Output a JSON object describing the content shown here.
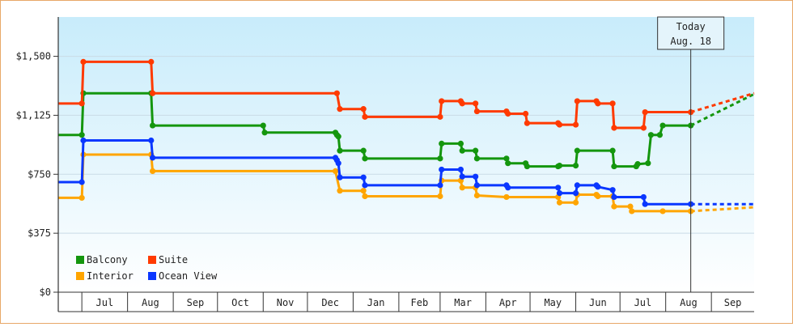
{
  "chart_data": {
    "type": "line",
    "title": "",
    "xlabel": "",
    "ylabel": "",
    "x_domain": [
      "2025-06-15",
      "2026-09-30"
    ],
    "ylim": [
      0,
      1750
    ],
    "y_ticks": [
      {
        "value": 0,
        "label": "$0"
      },
      {
        "value": 375,
        "label": "$375"
      },
      {
        "value": 750,
        "label": "$750"
      },
      {
        "value": 1125,
        "label": "$1,125"
      },
      {
        "value": 1500,
        "label": "$1,500"
      }
    ],
    "x_ticks": [
      {
        "start": "2025-07-01",
        "end": "2025-08-01",
        "label": "Jul"
      },
      {
        "start": "2025-08-01",
        "end": "2025-09-01",
        "label": "Aug"
      },
      {
        "start": "2025-09-01",
        "end": "2025-10-01",
        "label": "Sep"
      },
      {
        "start": "2025-10-01",
        "end": "2025-11-01",
        "label": "Oct"
      },
      {
        "start": "2025-11-01",
        "end": "2025-12-01",
        "label": "Nov"
      },
      {
        "start": "2025-12-01",
        "end": "2026-01-01",
        "label": "Dec"
      },
      {
        "start": "2026-01-01",
        "end": "2026-02-01",
        "label": "Jan"
      },
      {
        "start": "2026-02-01",
        "end": "2026-03-01",
        "label": "Feb"
      },
      {
        "start": "2026-03-01",
        "end": "2026-04-01",
        "label": "Mar"
      },
      {
        "start": "2026-04-01",
        "end": "2026-05-01",
        "label": "Apr"
      },
      {
        "start": "2026-05-01",
        "end": "2026-06-01",
        "label": "May"
      },
      {
        "start": "2026-06-01",
        "end": "2026-07-01",
        "label": "Jun"
      },
      {
        "start": "2026-07-01",
        "end": "2026-08-01",
        "label": "Jul"
      },
      {
        "start": "2026-08-01",
        "end": "2026-09-01",
        "label": "Aug"
      },
      {
        "start": "2026-09-01",
        "end": "2026-10-01",
        "label": "Sep"
      }
    ],
    "today": {
      "date": "2026-08-18",
      "label_line1": "Today",
      "label_line2": "Aug. 18"
    },
    "grid": true,
    "step": true,
    "legend": {
      "position": "bottom-left"
    },
    "series": [
      {
        "name": "Balcony",
        "color": "#14960e",
        "points": [
          [
            "2025-06-15",
            1000
          ],
          [
            "2025-07-01",
            1000
          ],
          [
            "2025-07-02",
            1265
          ],
          [
            "2025-08-17",
            1265
          ],
          [
            "2025-08-18",
            1060
          ],
          [
            "2025-11-01",
            1060
          ],
          [
            "2025-11-02",
            1015
          ],
          [
            "2025-12-20",
            1015
          ],
          [
            "2025-12-21",
            1000
          ],
          [
            "2025-12-22",
            990
          ],
          [
            "2025-12-23",
            900
          ],
          [
            "2026-01-08",
            900
          ],
          [
            "2026-01-09",
            850
          ],
          [
            "2026-03-01",
            850
          ],
          [
            "2026-03-02",
            945
          ],
          [
            "2026-03-15",
            945
          ],
          [
            "2026-03-16",
            900
          ],
          [
            "2026-03-25",
            900
          ],
          [
            "2026-03-26",
            850
          ],
          [
            "2026-04-15",
            850
          ],
          [
            "2026-04-16",
            820
          ],
          [
            "2026-04-28",
            820
          ],
          [
            "2026-04-29",
            800
          ],
          [
            "2026-05-20",
            800
          ],
          [
            "2026-05-21",
            805
          ],
          [
            "2026-06-01",
            805
          ],
          [
            "2026-06-02",
            900
          ],
          [
            "2026-06-26",
            900
          ],
          [
            "2026-06-27",
            800
          ],
          [
            "2026-07-12",
            800
          ],
          [
            "2026-07-13",
            815
          ],
          [
            "2026-07-20",
            820
          ],
          [
            "2026-07-22",
            1000
          ],
          [
            "2026-07-28",
            1000
          ],
          [
            "2026-07-30",
            1060
          ],
          [
            "2026-08-18",
            1060
          ]
        ],
        "forecast": [
          [
            "2026-08-18",
            1060
          ],
          [
            "2026-09-30",
            1260
          ]
        ]
      },
      {
        "name": "Suite",
        "color": "#ff3a00",
        "points": [
          [
            "2025-06-15",
            1200
          ],
          [
            "2025-07-01",
            1200
          ],
          [
            "2025-07-02",
            1465
          ],
          [
            "2025-08-17",
            1465
          ],
          [
            "2025-08-18",
            1265
          ],
          [
            "2025-12-21",
            1265
          ],
          [
            "2025-12-23",
            1165
          ],
          [
            "2026-01-08",
            1165
          ],
          [
            "2026-01-09",
            1115
          ],
          [
            "2026-03-01",
            1115
          ],
          [
            "2026-03-02",
            1215
          ],
          [
            "2026-03-15",
            1215
          ],
          [
            "2026-03-16",
            1200
          ],
          [
            "2026-03-25",
            1200
          ],
          [
            "2026-03-26",
            1150
          ],
          [
            "2026-04-15",
            1150
          ],
          [
            "2026-04-16",
            1135
          ],
          [
            "2026-04-28",
            1135
          ],
          [
            "2026-04-29",
            1075
          ],
          [
            "2026-05-20",
            1075
          ],
          [
            "2026-05-21",
            1065
          ],
          [
            "2026-06-01",
            1065
          ],
          [
            "2026-06-02",
            1215
          ],
          [
            "2026-06-15",
            1215
          ],
          [
            "2026-06-16",
            1200
          ],
          [
            "2026-06-26",
            1200
          ],
          [
            "2026-06-27",
            1045
          ],
          [
            "2026-07-17",
            1045
          ],
          [
            "2026-07-18",
            1145
          ],
          [
            "2026-08-18",
            1145
          ]
        ],
        "forecast": [
          [
            "2026-08-18",
            1145
          ],
          [
            "2026-09-30",
            1265
          ]
        ]
      },
      {
        "name": "Interior",
        "color": "#ffa500",
        "points": [
          [
            "2025-06-15",
            600
          ],
          [
            "2025-07-01",
            600
          ],
          [
            "2025-07-02",
            875
          ],
          [
            "2025-08-17",
            875
          ],
          [
            "2025-08-18",
            770
          ],
          [
            "2025-12-20",
            770
          ],
          [
            "2025-12-23",
            645
          ],
          [
            "2026-01-08",
            645
          ],
          [
            "2026-01-09",
            610
          ],
          [
            "2026-03-01",
            610
          ],
          [
            "2026-03-02",
            710
          ],
          [
            "2026-03-15",
            710
          ],
          [
            "2026-03-16",
            665
          ],
          [
            "2026-03-25",
            665
          ],
          [
            "2026-03-26",
            615
          ],
          [
            "2026-04-15",
            605
          ],
          [
            "2026-05-20",
            605
          ],
          [
            "2026-05-21",
            570
          ],
          [
            "2026-06-01",
            570
          ],
          [
            "2026-06-02",
            620
          ],
          [
            "2026-06-15",
            620
          ],
          [
            "2026-06-16",
            610
          ],
          [
            "2026-06-26",
            610
          ],
          [
            "2026-06-27",
            545
          ],
          [
            "2026-07-08",
            545
          ],
          [
            "2026-07-09",
            515
          ],
          [
            "2026-07-30",
            515
          ],
          [
            "2026-08-18",
            515
          ]
        ],
        "forecast": [
          [
            "2026-08-18",
            515
          ],
          [
            "2026-09-30",
            540
          ]
        ]
      },
      {
        "name": "Ocean View",
        "color": "#0a37ff",
        "points": [
          [
            "2025-06-15",
            700
          ],
          [
            "2025-07-01",
            700
          ],
          [
            "2025-07-02",
            965
          ],
          [
            "2025-08-17",
            965
          ],
          [
            "2025-08-18",
            855
          ],
          [
            "2025-12-20",
            855
          ],
          [
            "2025-12-21",
            840
          ],
          [
            "2025-12-22",
            820
          ],
          [
            "2025-12-23",
            730
          ],
          [
            "2026-01-08",
            730
          ],
          [
            "2026-01-09",
            680
          ],
          [
            "2026-03-01",
            680
          ],
          [
            "2026-03-02",
            780
          ],
          [
            "2026-03-15",
            780
          ],
          [
            "2026-03-16",
            735
          ],
          [
            "2026-03-25",
            735
          ],
          [
            "2026-03-26",
            680
          ],
          [
            "2026-04-15",
            680
          ],
          [
            "2026-04-16",
            665
          ],
          [
            "2026-05-20",
            665
          ],
          [
            "2026-05-21",
            630
          ],
          [
            "2026-06-01",
            630
          ],
          [
            "2026-06-02",
            680
          ],
          [
            "2026-06-15",
            680
          ],
          [
            "2026-06-16",
            670
          ],
          [
            "2026-06-26",
            650
          ],
          [
            "2026-06-27",
            605
          ],
          [
            "2026-07-17",
            605
          ],
          [
            "2026-07-18",
            560
          ],
          [
            "2026-08-18",
            560
          ]
        ],
        "forecast": [
          [
            "2026-08-18",
            560
          ],
          [
            "2026-09-30",
            560
          ]
        ]
      }
    ]
  }
}
